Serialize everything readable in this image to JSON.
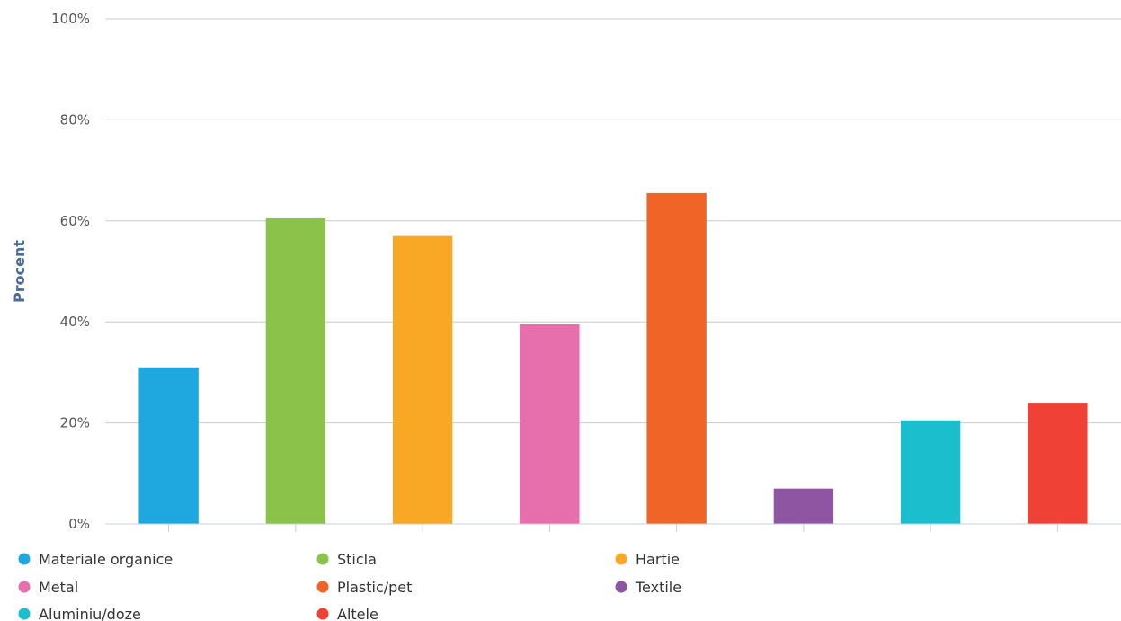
{
  "chart_data": {
    "type": "bar",
    "title": "",
    "xlabel": "",
    "ylabel": "Procent",
    "ylim": [
      0,
      100
    ],
    "yticks": [
      "0%",
      "20%",
      "40%",
      "60%",
      "80%",
      "100%"
    ],
    "grid": true,
    "legend_position": "bottom",
    "categories": [
      "Materiale organice",
      "Sticla",
      "Hartie",
      "Metal",
      "Plastic/pet",
      "Textile",
      "Aluminiu/doze",
      "Altele"
    ],
    "values": [
      31,
      60.5,
      57,
      39.5,
      65.5,
      7,
      20.5,
      24
    ],
    "colors": [
      "#1fa8e0",
      "#8bc34a",
      "#f9a825",
      "#e76fac",
      "#f06527",
      "#8e55a3",
      "#1bbecd",
      "#ef4136"
    ]
  }
}
